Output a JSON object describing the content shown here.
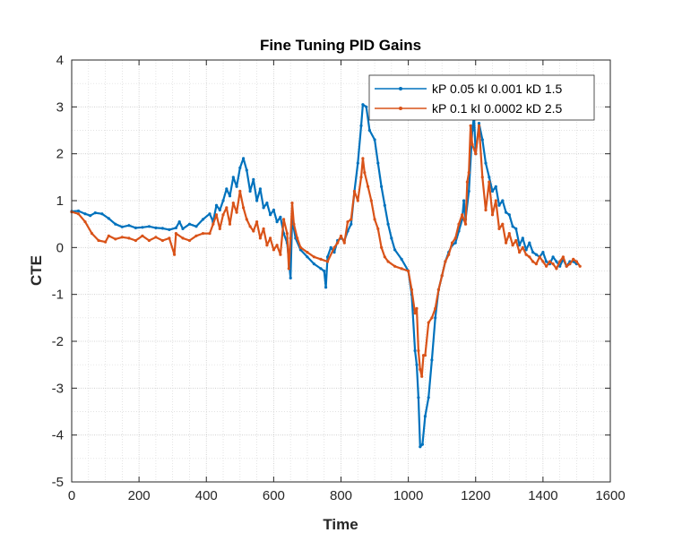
{
  "chart_data": {
    "type": "line",
    "title": "Fine Tuning PID Gains",
    "xlabel": "Time",
    "ylabel": "CTE",
    "xlim": [
      0,
      1600
    ],
    "ylim": [
      -5,
      4
    ],
    "xticks": [
      "0",
      "200",
      "400",
      "600",
      "800",
      "1000",
      "1200",
      "1400",
      "1600"
    ],
    "yticks": [
      "4",
      "3",
      "2",
      "1",
      "0",
      "-1",
      "-2",
      "-3",
      "-4",
      "-5"
    ],
    "grid": true,
    "minor_grid": true,
    "legend_position": "top-right",
    "series": [
      {
        "name": "kP 0.05 kI 0.001 kD 1.5",
        "color": "#0072BD",
        "marker": "dot",
        "points": [
          [
            0,
            0.77
          ],
          [
            20,
            0.78
          ],
          [
            40,
            0.72
          ],
          [
            55,
            0.68
          ],
          [
            70,
            0.74
          ],
          [
            90,
            0.72
          ],
          [
            110,
            0.62
          ],
          [
            130,
            0.5
          ],
          [
            150,
            0.44
          ],
          [
            170,
            0.47
          ],
          [
            190,
            0.42
          ],
          [
            210,
            0.43
          ],
          [
            230,
            0.45
          ],
          [
            250,
            0.42
          ],
          [
            270,
            0.41
          ],
          [
            290,
            0.38
          ],
          [
            310,
            0.42
          ],
          [
            320,
            0.55
          ],
          [
            330,
            0.4
          ],
          [
            350,
            0.5
          ],
          [
            370,
            0.45
          ],
          [
            390,
            0.6
          ],
          [
            410,
            0.72
          ],
          [
            420,
            0.55
          ],
          [
            430,
            0.9
          ],
          [
            440,
            0.8
          ],
          [
            450,
            1.0
          ],
          [
            460,
            1.25
          ],
          [
            470,
            1.1
          ],
          [
            480,
            1.5
          ],
          [
            490,
            1.3
          ],
          [
            500,
            1.7
          ],
          [
            510,
            1.9
          ],
          [
            520,
            1.65
          ],
          [
            530,
            1.2
          ],
          [
            540,
            1.45
          ],
          [
            550,
            1.0
          ],
          [
            560,
            1.25
          ],
          [
            570,
            0.85
          ],
          [
            580,
            0.95
          ],
          [
            590,
            0.7
          ],
          [
            600,
            0.8
          ],
          [
            610,
            0.55
          ],
          [
            620,
            0.65
          ],
          [
            630,
            0.3
          ],
          [
            640,
            0.1
          ],
          [
            650,
            -0.65
          ],
          [
            655,
            0.6
          ],
          [
            665,
            0.2
          ],
          [
            680,
            -0.05
          ],
          [
            700,
            -0.2
          ],
          [
            720,
            -0.35
          ],
          [
            740,
            -0.45
          ],
          [
            750,
            -0.5
          ],
          [
            755,
            -0.85
          ],
          [
            760,
            -0.2
          ],
          [
            770,
            0.0
          ],
          [
            780,
            -0.1
          ],
          [
            790,
            0.15
          ],
          [
            800,
            0.2
          ],
          [
            810,
            0.15
          ],
          [
            820,
            0.35
          ],
          [
            830,
            0.5
          ],
          [
            840,
            1.2
          ],
          [
            850,
            1.8
          ],
          [
            860,
            2.6
          ],
          [
            865,
            3.05
          ],
          [
            875,
            3.0
          ],
          [
            885,
            2.5
          ],
          [
            900,
            2.3
          ],
          [
            910,
            1.8
          ],
          [
            920,
            1.3
          ],
          [
            930,
            0.9
          ],
          [
            940,
            0.5
          ],
          [
            950,
            0.2
          ],
          [
            960,
            -0.05
          ],
          [
            980,
            -0.25
          ],
          [
            1000,
            -0.5
          ],
          [
            1010,
            -1.0
          ],
          [
            1020,
            -2.2
          ],
          [
            1025,
            -2.5
          ],
          [
            1030,
            -3.2
          ],
          [
            1035,
            -4.25
          ],
          [
            1042,
            -4.2
          ],
          [
            1050,
            -3.6
          ],
          [
            1060,
            -3.2
          ],
          [
            1070,
            -2.4
          ],
          [
            1080,
            -1.5
          ],
          [
            1090,
            -0.9
          ],
          [
            1100,
            -0.6
          ],
          [
            1110,
            -0.3
          ],
          [
            1120,
            -0.1
          ],
          [
            1130,
            0.05
          ],
          [
            1140,
            0.1
          ],
          [
            1150,
            0.35
          ],
          [
            1160,
            0.6
          ],
          [
            1165,
            1.0
          ],
          [
            1170,
            0.6
          ],
          [
            1180,
            1.2
          ],
          [
            1190,
            2.5
          ],
          [
            1195,
            2.8
          ],
          [
            1200,
            2.0
          ],
          [
            1210,
            2.65
          ],
          [
            1220,
            2.3
          ],
          [
            1230,
            1.8
          ],
          [
            1240,
            1.5
          ],
          [
            1250,
            1.2
          ],
          [
            1260,
            1.3
          ],
          [
            1270,
            0.9
          ],
          [
            1280,
            1.0
          ],
          [
            1290,
            0.75
          ],
          [
            1300,
            0.7
          ],
          [
            1310,
            0.45
          ],
          [
            1320,
            0.4
          ],
          [
            1330,
            0.05
          ],
          [
            1340,
            0.2
          ],
          [
            1350,
            -0.05
          ],
          [
            1360,
            0.1
          ],
          [
            1370,
            -0.1
          ],
          [
            1380,
            -0.15
          ],
          [
            1390,
            -0.2
          ],
          [
            1400,
            -0.1
          ],
          [
            1410,
            -0.3
          ],
          [
            1420,
            -0.35
          ],
          [
            1430,
            -0.2
          ],
          [
            1440,
            -0.3
          ],
          [
            1450,
            -0.4
          ],
          [
            1460,
            -0.25
          ],
          [
            1470,
            -0.4
          ],
          [
            1480,
            -0.3
          ],
          [
            1490,
            -0.3
          ],
          [
            1500,
            -0.35
          ]
        ]
      },
      {
        "name": "kP 0.1 kI 0.0002 kD 2.5",
        "color": "#D95319",
        "marker": "dot",
        "points": [
          [
            0,
            0.76
          ],
          [
            20,
            0.72
          ],
          [
            40,
            0.55
          ],
          [
            60,
            0.3
          ],
          [
            80,
            0.15
          ],
          [
            100,
            0.12
          ],
          [
            110,
            0.25
          ],
          [
            130,
            0.18
          ],
          [
            150,
            0.22
          ],
          [
            170,
            0.2
          ],
          [
            190,
            0.15
          ],
          [
            210,
            0.25
          ],
          [
            230,
            0.15
          ],
          [
            250,
            0.22
          ],
          [
            270,
            0.15
          ],
          [
            290,
            0.2
          ],
          [
            305,
            -0.15
          ],
          [
            310,
            0.3
          ],
          [
            330,
            0.2
          ],
          [
            350,
            0.15
          ],
          [
            370,
            0.25
          ],
          [
            390,
            0.3
          ],
          [
            410,
            0.3
          ],
          [
            420,
            0.5
          ],
          [
            430,
            0.7
          ],
          [
            440,
            0.4
          ],
          [
            450,
            0.7
          ],
          [
            460,
            0.85
          ],
          [
            470,
            0.5
          ],
          [
            480,
            0.95
          ],
          [
            490,
            0.75
          ],
          [
            500,
            1.2
          ],
          [
            510,
            0.85
          ],
          [
            520,
            0.6
          ],
          [
            530,
            0.45
          ],
          [
            540,
            0.35
          ],
          [
            550,
            0.55
          ],
          [
            560,
            0.2
          ],
          [
            570,
            0.4
          ],
          [
            580,
            0.05
          ],
          [
            590,
            0.2
          ],
          [
            600,
            -0.05
          ],
          [
            610,
            0.05
          ],
          [
            620,
            -0.15
          ],
          [
            630,
            0.6
          ],
          [
            640,
            0.3
          ],
          [
            645,
            -0.45
          ],
          [
            650,
            0.2
          ],
          [
            655,
            0.95
          ],
          [
            660,
            0.5
          ],
          [
            670,
            0.2
          ],
          [
            680,
            0.0
          ],
          [
            700,
            -0.1
          ],
          [
            720,
            -0.2
          ],
          [
            740,
            -0.25
          ],
          [
            760,
            -0.3
          ],
          [
            780,
            0.0
          ],
          [
            790,
            0.1
          ],
          [
            800,
            0.25
          ],
          [
            810,
            0.1
          ],
          [
            820,
            0.55
          ],
          [
            830,
            0.6
          ],
          [
            840,
            1.2
          ],
          [
            850,
            1.0
          ],
          [
            860,
            1.5
          ],
          [
            865,
            1.9
          ],
          [
            870,
            1.6
          ],
          [
            880,
            1.3
          ],
          [
            890,
            1.0
          ],
          [
            900,
            0.6
          ],
          [
            910,
            0.4
          ],
          [
            920,
            0.0
          ],
          [
            930,
            -0.2
          ],
          [
            940,
            -0.3
          ],
          [
            960,
            -0.4
          ],
          [
            980,
            -0.45
          ],
          [
            1000,
            -0.5
          ],
          [
            1010,
            -0.9
          ],
          [
            1020,
            -1.4
          ],
          [
            1025,
            -1.3
          ],
          [
            1030,
            -2.2
          ],
          [
            1035,
            -2.6
          ],
          [
            1040,
            -2.75
          ],
          [
            1045,
            -2.3
          ],
          [
            1050,
            -2.3
          ],
          [
            1060,
            -1.6
          ],
          [
            1070,
            -1.5
          ],
          [
            1080,
            -1.3
          ],
          [
            1090,
            -0.9
          ],
          [
            1100,
            -0.6
          ],
          [
            1110,
            -0.3
          ],
          [
            1120,
            -0.15
          ],
          [
            1130,
            0.1
          ],
          [
            1140,
            0.2
          ],
          [
            1150,
            0.5
          ],
          [
            1160,
            0.7
          ],
          [
            1170,
            0.5
          ],
          [
            1175,
            1.4
          ],
          [
            1180,
            1.6
          ],
          [
            1185,
            2.6
          ],
          [
            1190,
            2.2
          ],
          [
            1200,
            2.0
          ],
          [
            1210,
            2.6
          ],
          [
            1220,
            1.5
          ],
          [
            1230,
            0.8
          ],
          [
            1240,
            1.4
          ],
          [
            1250,
            0.7
          ],
          [
            1260,
            1.0
          ],
          [
            1270,
            0.4
          ],
          [
            1280,
            0.5
          ],
          [
            1290,
            0.1
          ],
          [
            1300,
            0.3
          ],
          [
            1310,
            0.05
          ],
          [
            1320,
            0.15
          ],
          [
            1330,
            -0.1
          ],
          [
            1340,
            0.0
          ],
          [
            1350,
            -0.15
          ],
          [
            1360,
            -0.2
          ],
          [
            1370,
            -0.3
          ],
          [
            1380,
            -0.35
          ],
          [
            1390,
            -0.2
          ],
          [
            1400,
            -0.3
          ],
          [
            1410,
            -0.4
          ],
          [
            1420,
            -0.3
          ],
          [
            1430,
            -0.35
          ],
          [
            1440,
            -0.45
          ],
          [
            1450,
            -0.3
          ],
          [
            1460,
            -0.2
          ],
          [
            1470,
            -0.4
          ],
          [
            1480,
            -0.35
          ],
          [
            1490,
            -0.25
          ],
          [
            1500,
            -0.3
          ],
          [
            1510,
            -0.4
          ]
        ]
      }
    ]
  }
}
